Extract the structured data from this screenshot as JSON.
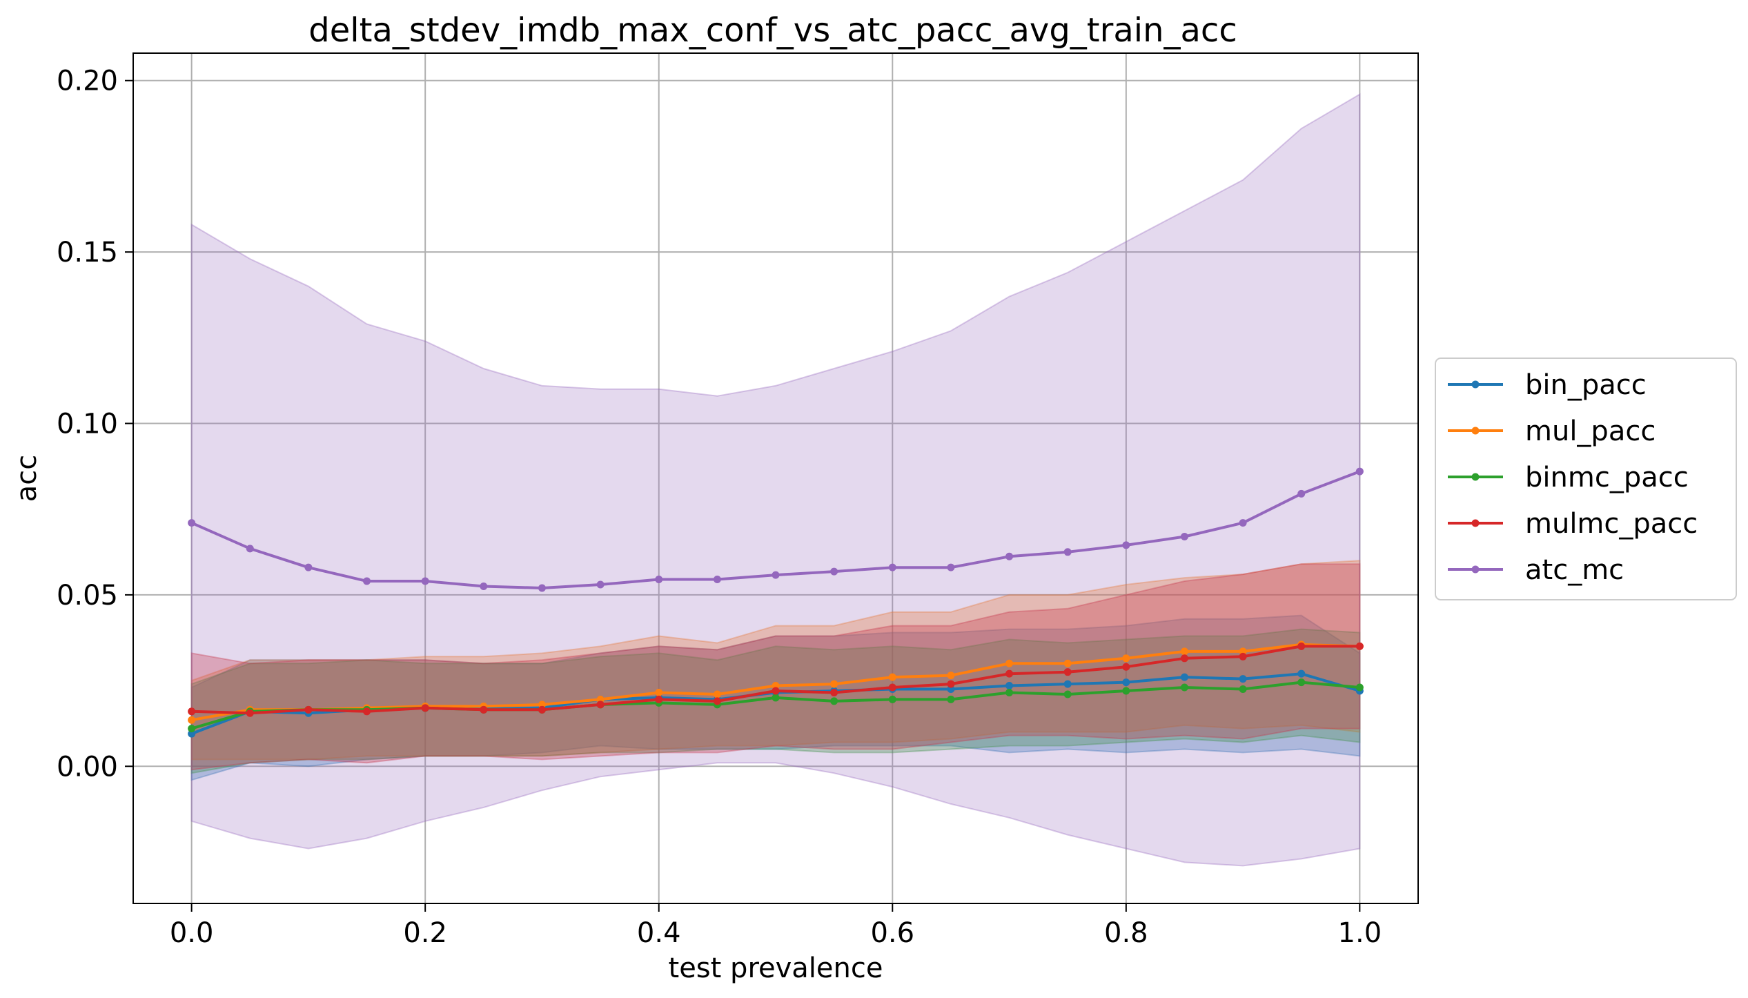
{
  "chart_data": {
    "type": "line",
    "title": "delta_stdev_imdb_max_conf_vs_atc_pacc_avg_train_acc",
    "xlabel": "test prevalence",
    "ylabel": "acc",
    "xlim": [
      -0.05,
      1.05
    ],
    "ylim": [
      -0.04,
      0.208
    ],
    "grid": true,
    "legend_position": "right-outside",
    "x": [
      0.0,
      0.05,
      0.1,
      0.15,
      0.2,
      0.25,
      0.3,
      0.35,
      0.4,
      0.45,
      0.5,
      0.55,
      0.6,
      0.65,
      0.7,
      0.75,
      0.8,
      0.85,
      0.9,
      0.95,
      1.0
    ],
    "xticks": [
      {
        "value": 0.0,
        "label": "0.0"
      },
      {
        "value": 0.2,
        "label": "0.2"
      },
      {
        "value": 0.4,
        "label": "0.4"
      },
      {
        "value": 0.6,
        "label": "0.6"
      },
      {
        "value": 0.8,
        "label": "0.8"
      },
      {
        "value": 1.0,
        "label": "1.0"
      }
    ],
    "yticks": [
      {
        "value": 0.0,
        "label": "0.00"
      },
      {
        "value": 0.05,
        "label": "0.05"
      },
      {
        "value": 0.1,
        "label": "0.10"
      },
      {
        "value": 0.15,
        "label": "0.15"
      },
      {
        "value": 0.2,
        "label": "0.20"
      }
    ],
    "series": [
      {
        "name": "bin_pacc",
        "color": "#1f77b4",
        "values": [
          0.0095,
          0.016,
          0.0155,
          0.0165,
          0.017,
          0.0168,
          0.017,
          0.0195,
          0.02,
          0.0195,
          0.0215,
          0.022,
          0.0225,
          0.0225,
          0.0235,
          0.024,
          0.0245,
          0.026,
          0.0255,
          0.027,
          0.022
        ],
        "upper": [
          0.023,
          0.031,
          0.031,
          0.031,
          0.031,
          0.03,
          0.03,
          0.033,
          0.035,
          0.034,
          0.038,
          0.038,
          0.039,
          0.039,
          0.04,
          0.04,
          0.041,
          0.043,
          0.043,
          0.044,
          0.033
        ],
        "lower": [
          -0.004,
          0.001,
          0.0,
          0.002,
          0.003,
          0.003,
          0.004,
          0.006,
          0.005,
          0.005,
          0.005,
          0.006,
          0.006,
          0.006,
          0.004,
          0.005,
          0.004,
          0.005,
          0.004,
          0.005,
          0.003
        ]
      },
      {
        "name": "mul_pacc",
        "color": "#ff7f0e",
        "values": [
          0.0135,
          0.0165,
          0.0165,
          0.017,
          0.0175,
          0.0175,
          0.018,
          0.0195,
          0.0215,
          0.021,
          0.0235,
          0.024,
          0.026,
          0.0265,
          0.03,
          0.03,
          0.0315,
          0.0335,
          0.0335,
          0.0355,
          0.035
        ],
        "upper": [
          0.025,
          0.031,
          0.031,
          0.031,
          0.032,
          0.032,
          0.033,
          0.035,
          0.038,
          0.036,
          0.041,
          0.041,
          0.045,
          0.045,
          0.05,
          0.05,
          0.053,
          0.055,
          0.056,
          0.059,
          0.06
        ],
        "lower": [
          0.002,
          0.002,
          0.002,
          0.003,
          0.003,
          0.003,
          0.003,
          0.004,
          0.005,
          0.006,
          0.006,
          0.007,
          0.007,
          0.008,
          0.01,
          0.01,
          0.01,
          0.012,
          0.011,
          0.012,
          0.01
        ]
      },
      {
        "name": "binmc_pacc",
        "color": "#2ca02c",
        "values": [
          0.011,
          0.016,
          0.0165,
          0.0165,
          0.017,
          0.0165,
          0.0165,
          0.018,
          0.0185,
          0.018,
          0.02,
          0.019,
          0.0195,
          0.0195,
          0.0215,
          0.021,
          0.022,
          0.023,
          0.0225,
          0.0245,
          0.023
        ],
        "upper": [
          0.024,
          0.03,
          0.03,
          0.031,
          0.03,
          0.03,
          0.03,
          0.032,
          0.033,
          0.031,
          0.035,
          0.034,
          0.035,
          0.034,
          0.037,
          0.036,
          0.037,
          0.038,
          0.038,
          0.04,
          0.039
        ],
        "lower": [
          -0.002,
          0.001,
          0.002,
          0.002,
          0.003,
          0.003,
          0.003,
          0.004,
          0.004,
          0.005,
          0.005,
          0.004,
          0.004,
          0.005,
          0.006,
          0.006,
          0.007,
          0.008,
          0.007,
          0.009,
          0.007
        ]
      },
      {
        "name": "mulmc_pacc",
        "color": "#d62728",
        "values": [
          0.016,
          0.0155,
          0.0165,
          0.016,
          0.017,
          0.0165,
          0.0165,
          0.018,
          0.0195,
          0.019,
          0.022,
          0.0215,
          0.023,
          0.024,
          0.027,
          0.0275,
          0.029,
          0.0315,
          0.032,
          0.035,
          0.035
        ],
        "upper": [
          0.033,
          0.03,
          0.031,
          0.031,
          0.031,
          0.03,
          0.031,
          0.033,
          0.035,
          0.034,
          0.038,
          0.038,
          0.041,
          0.041,
          0.045,
          0.046,
          0.05,
          0.054,
          0.056,
          0.059,
          0.059
        ],
        "lower": [
          -0.001,
          0.001,
          0.002,
          0.001,
          0.003,
          0.003,
          0.002,
          0.003,
          0.004,
          0.004,
          0.006,
          0.005,
          0.005,
          0.007,
          0.009,
          0.009,
          0.008,
          0.009,
          0.008,
          0.011,
          0.011
        ]
      },
      {
        "name": "atc_mc",
        "color": "#9467bd",
        "values": [
          0.071,
          0.0635,
          0.058,
          0.054,
          0.054,
          0.0525,
          0.052,
          0.053,
          0.0545,
          0.0545,
          0.0558,
          0.0568,
          0.058,
          0.058,
          0.0612,
          0.0625,
          0.0645,
          0.067,
          0.071,
          0.0795,
          0.086
        ],
        "upper": [
          0.158,
          0.148,
          0.14,
          0.129,
          0.124,
          0.116,
          0.111,
          0.11,
          0.11,
          0.108,
          0.111,
          0.116,
          0.121,
          0.127,
          0.137,
          0.144,
          0.153,
          0.162,
          0.171,
          0.186,
          0.196
        ],
        "lower": [
          -0.016,
          -0.021,
          -0.024,
          -0.021,
          -0.016,
          -0.012,
          -0.007,
          -0.003,
          -0.001,
          0.001,
          0.001,
          -0.002,
          -0.006,
          -0.011,
          -0.015,
          -0.02,
          -0.024,
          -0.028,
          -0.029,
          -0.027,
          -0.024
        ]
      }
    ]
  }
}
